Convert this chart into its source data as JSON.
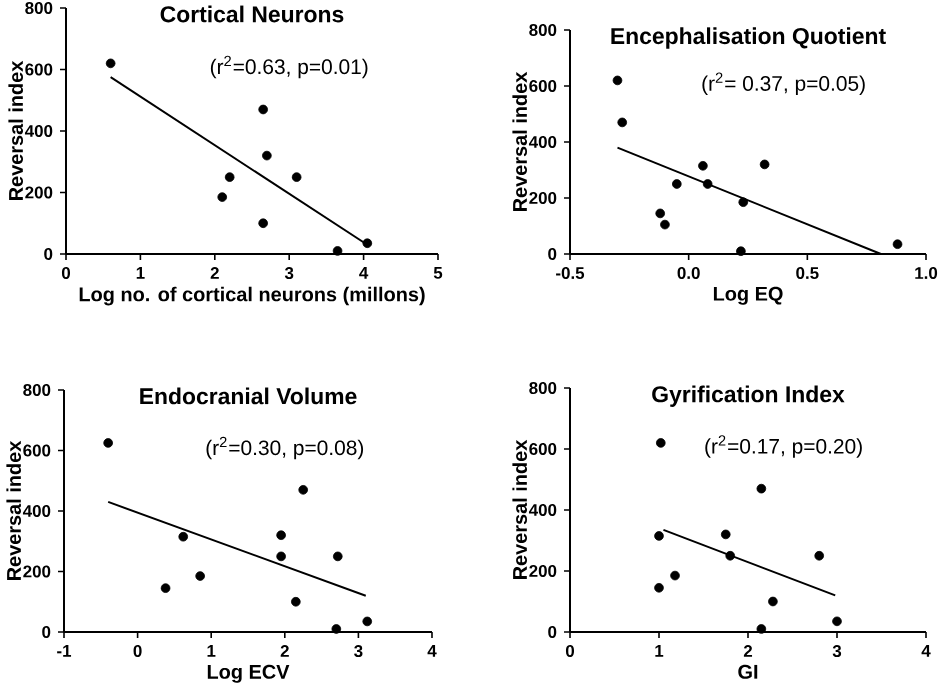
{
  "chart_data": [
    {
      "type": "scatter",
      "title": "Cortical Neurons",
      "xlabel": "Log no. of cortical neurons (millons)",
      "ylabel": "Reversal index",
      "annotations": [
        "(r$^{2}$=0.63, p=0.01)"
      ],
      "xlim": [
        0,
        5
      ],
      "ylim": [
        0,
        800
      ],
      "xticks": [
        0,
        1,
        2,
        3,
        4,
        5
      ],
      "yticks": [
        0,
        200,
        400,
        600,
        800
      ],
      "series": [
        {
          "type": "scatter",
          "color": "#000000",
          "marker": "circle",
          "x": [
            0.6,
            2.1,
            2.2,
            2.65,
            2.65,
            2.7,
            3.1,
            3.65,
            4.05
          ],
          "values": [
            620,
            185,
            250,
            470,
            100,
            320,
            250,
            10,
            35
          ]
        },
        {
          "type": "line",
          "color": "#000000",
          "x": [
            0.6,
            4.05
          ],
          "values": [
            575,
            30
          ]
        }
      ]
    },
    {
      "type": "scatter",
      "title": "Encephalisation Quotient",
      "xlabel": "Log EQ",
      "ylabel": "Reversal index",
      "annotations": [
        "(r$^{2}$= 0.37, p=0.05)"
      ],
      "xlim": [
        -0.5,
        1.0
      ],
      "ylim": [
        0,
        800
      ],
      "xticks": [
        -0.5,
        {
          "value": 0,
          "label": "0.0"
        },
        0.5,
        {
          "value": 1,
          "label": "1.0"
        }
      ],
      "yticks": [
        0,
        200,
        400,
        600,
        800
      ],
      "series": [
        {
          "type": "scatter",
          "color": "#000000",
          "marker": "circle",
          "x": [
            -0.3,
            -0.28,
            -0.12,
            -0.1,
            -0.05,
            0.06,
            0.08,
            0.23,
            0.22,
            0.32,
            0.88
          ],
          "values": [
            620,
            470,
            145,
            105,
            250,
            315,
            250,
            185,
            10,
            320,
            35
          ]
        },
        {
          "type": "line",
          "color": "#000000",
          "x": [
            -0.3,
            0.81
          ],
          "values": [
            380,
            0
          ]
        }
      ]
    },
    {
      "type": "scatter",
      "title": "Endocranial Volume",
      "xlabel": "Log ECV",
      "ylabel": "Reversal index",
      "annotations": [
        "(r$^{2}$=0.30, p=0.08)"
      ],
      "xlim": [
        -1,
        4
      ],
      "ylim": [
        0,
        800
      ],
      "xticks": [
        -1,
        0,
        1,
        2,
        3,
        4
      ],
      "yticks": [
        0,
        200,
        400,
        600,
        800
      ],
      "series": [
        {
          "type": "scatter",
          "color": "#000000",
          "marker": "circle",
          "x": [
            -0.4,
            0.38,
            0.62,
            0.85,
            1.95,
            1.95,
            2.25,
            2.15,
            2.7,
            2.72,
            3.12
          ],
          "values": [
            625,
            145,
            315,
            185,
            320,
            250,
            470,
            100,
            10,
            250,
            35
          ]
        },
        {
          "type": "line",
          "color": "#000000",
          "x": [
            -0.4,
            3.1
          ],
          "values": [
            430,
            120
          ]
        }
      ]
    },
    {
      "type": "scatter",
      "title": "Gyrification Index",
      "xlabel": "GI",
      "ylabel": "Reversal index",
      "annotations": [
        "(r$^{2}$=0.17, p=0.20)"
      ],
      "xlim": [
        0,
        4
      ],
      "ylim": [
        0,
        800
      ],
      "xticks": [
        0,
        1,
        2,
        3,
        4
      ],
      "yticks": [
        0,
        200,
        400,
        600,
        800
      ],
      "series": [
        {
          "type": "scatter",
          "color": "#000000",
          "marker": "circle",
          "x": [
            1.02,
            1.0,
            1.0,
            1.18,
            1.75,
            1.8,
            2.15,
            2.15,
            2.28,
            2.8,
            3.0
          ],
          "values": [
            620,
            315,
            145,
            185,
            320,
            250,
            470,
            10,
            100,
            250,
            35
          ]
        },
        {
          "type": "line",
          "color": "#000000",
          "x": [
            1.05,
            2.98
          ],
          "values": [
            335,
            120
          ]
        }
      ]
    }
  ]
}
